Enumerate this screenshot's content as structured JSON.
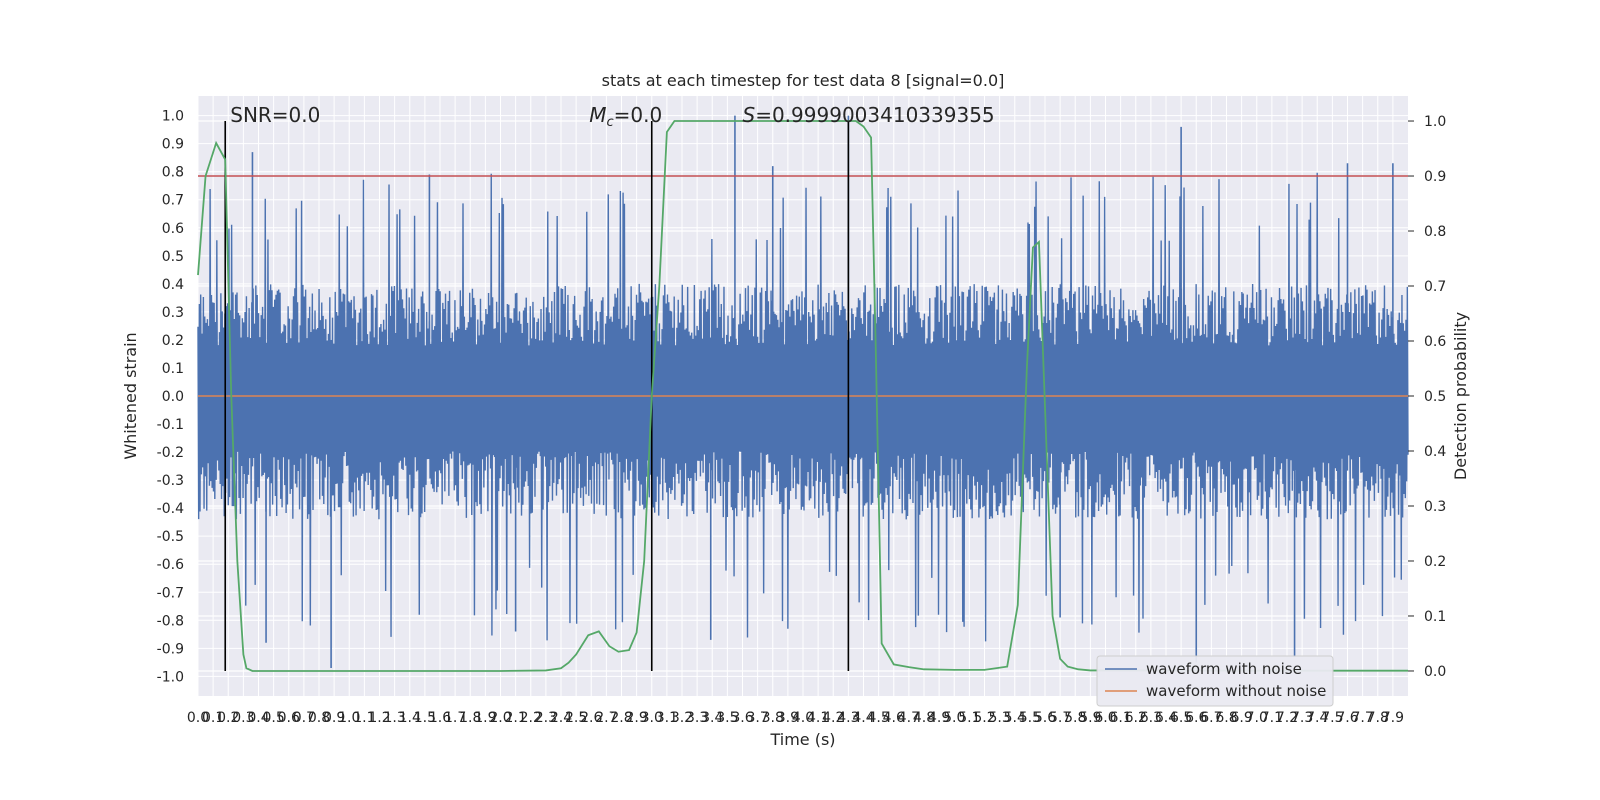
{
  "chart_data": {
    "type": "line",
    "title": "stats at each timestep for test data 8 [signal=0.0]",
    "xlabel": "Time (s)",
    "ylabel": "Whitened strain",
    "y2label": "Detection probability",
    "xlim": [
      0,
      8.0
    ],
    "ylim": [
      -1.07,
      1.07
    ],
    "y2lim": [
      -0.0455,
      1.0455
    ],
    "x_ticks": [
      0.0,
      0.1,
      0.2,
      0.3,
      0.4,
      0.5,
      0.6,
      0.7,
      0.8,
      0.9,
      1.0,
      1.1,
      1.2,
      1.3,
      1.4,
      1.5,
      1.6,
      1.7,
      1.8,
      1.9,
      2.0,
      2.1,
      2.2,
      2.3,
      2.4,
      2.5,
      2.6,
      2.7,
      2.8,
      2.9,
      3.0,
      3.1,
      3.2,
      3.3,
      3.4,
      3.5,
      3.6,
      3.7,
      3.8,
      3.9,
      4.0,
      4.1,
      4.2,
      4.3,
      4.4,
      4.5,
      4.6,
      4.7,
      4.8,
      4.9,
      5.0,
      5.1,
      5.2,
      5.3,
      5.4,
      5.5,
      5.6,
      5.7,
      5.8,
      5.9,
      6.0,
      6.1,
      6.2,
      6.3,
      6.4,
      6.5,
      6.6,
      6.7,
      6.8,
      6.9,
      7.0,
      7.1,
      7.2,
      7.3,
      7.4,
      7.5,
      7.6,
      7.7,
      7.8,
      7.9
    ],
    "y_ticks": [
      -1.0,
      -0.9,
      -0.8,
      -0.7,
      -0.6,
      -0.5,
      -0.4,
      -0.3,
      -0.2,
      -0.1,
      0.0,
      0.1,
      0.2,
      0.3,
      0.4,
      0.5,
      0.6,
      0.7,
      0.8,
      0.9,
      1.0
    ],
    "y2_ticks": [
      0.0,
      0.1,
      0.2,
      0.3,
      0.4,
      0.5,
      0.6,
      0.7,
      0.8,
      0.9,
      1.0
    ],
    "grid": true,
    "legend_position": "lower-right",
    "series": [
      {
        "name": "waveform with noise",
        "axis": "left",
        "color": "#4c72b0",
        "noise_amplitude": 0.4,
        "peak_spikes": [
          [
            0.36,
            0.87
          ],
          [
            1.53,
            0.79
          ],
          [
            3.55,
            1.0
          ],
          [
            3.8,
            0.82
          ],
          [
            4.3,
            1.0
          ],
          [
            6.5,
            0.96
          ],
          [
            7.6,
            0.83
          ],
          [
            7.9,
            0.83
          ],
          [
            0.88,
            -0.97
          ],
          [
            0.45,
            -0.88
          ],
          [
            2.1,
            -0.84
          ],
          [
            3.39,
            -0.87
          ],
          [
            6.6,
            -0.95
          ],
          [
            7.25,
            -0.93
          ],
          [
            5.7,
            -0.79
          ]
        ]
      },
      {
        "name": "waveform without noise",
        "axis": "left",
        "color": "#dd8452",
        "x": [
          0.0,
          8.0
        ],
        "y": [
          0.0,
          0.0
        ]
      },
      {
        "name": "detection probability",
        "axis": "right",
        "color": "#55a868",
        "x": [
          0.0,
          0.05,
          0.12,
          0.18,
          0.22,
          0.26,
          0.3,
          0.32,
          0.36,
          0.4,
          0.5,
          0.8,
          1.5,
          2.0,
          2.3,
          2.4,
          2.45,
          2.5,
          2.58,
          2.65,
          2.72,
          2.78,
          2.85,
          2.9,
          2.95,
          3.0,
          3.05,
          3.1,
          3.15,
          3.2,
          3.6,
          4.0,
          4.2,
          4.35,
          4.4,
          4.45,
          4.48,
          4.52,
          4.6,
          4.7,
          4.8,
          5.0,
          5.2,
          5.35,
          5.42,
          5.48,
          5.52,
          5.56,
          5.6,
          5.65,
          5.7,
          5.75,
          5.82,
          5.9,
          6.0,
          7.0,
          8.0
        ],
        "y": [
          0.72,
          0.9,
          0.96,
          0.93,
          0.5,
          0.2,
          0.03,
          0.005,
          0.0,
          0.0,
          0.0,
          0.0,
          0.0,
          0.0,
          0.001,
          0.005,
          0.015,
          0.03,
          0.065,
          0.072,
          0.045,
          0.035,
          0.038,
          0.07,
          0.2,
          0.5,
          0.7,
          0.98,
          1.0,
          1.0,
          1.0,
          1.0,
          1.0,
          1.0,
          0.99,
          0.97,
          0.6,
          0.05,
          0.012,
          0.007,
          0.003,
          0.002,
          0.002,
          0.008,
          0.12,
          0.55,
          0.77,
          0.78,
          0.48,
          0.1,
          0.022,
          0.008,
          0.003,
          0.001,
          0.001,
          0.0005,
          0.0005
        ]
      }
    ],
    "hlines": [
      {
        "axis": "right",
        "value": 0.9,
        "color": "#c44e52"
      }
    ],
    "vlines": [
      {
        "x": 0.18,
        "y2_range": [
          0.0,
          1.0
        ],
        "color": "#000000"
      },
      {
        "x": 3.0,
        "y2_range": [
          0.0,
          1.0
        ],
        "color": "#000000"
      },
      {
        "x": 4.3,
        "y2_range": [
          0.0,
          1.0
        ],
        "color": "#000000"
      }
    ],
    "annotations": [
      {
        "x": 0.2,
        "text_prefix": "SNR=",
        "text_value": "0.0"
      },
      {
        "x": 2.6,
        "symbol": "M",
        "subscript": "c",
        "text_value": "=0.0"
      },
      {
        "x": 3.6,
        "symbol": "S",
        "text_value": "=0.9999003410339355"
      }
    ]
  }
}
